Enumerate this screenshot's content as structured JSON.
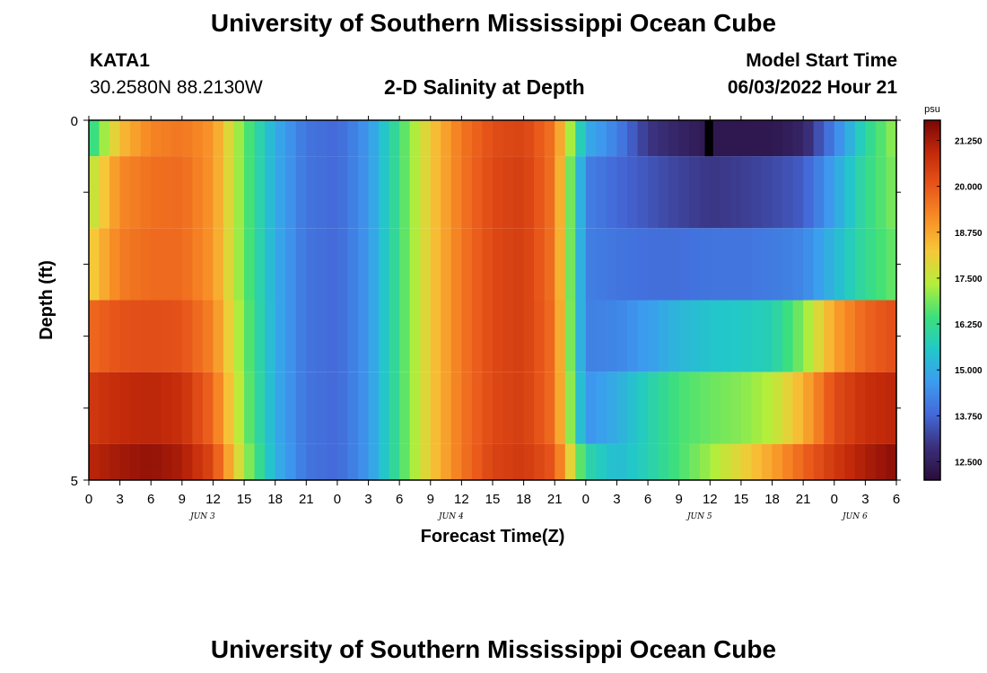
{
  "page": {
    "title": "University of Southern Mississippi Ocean Cube",
    "footer_title": "University of Southern Mississippi Ocean Cube",
    "station": "KATA1",
    "coords": "30.2580N  88.2130W",
    "subtitle": "2-D Salinity at Depth",
    "model_label": "Model Start Time",
    "model_time": "06/03/2022 Hour 21"
  },
  "chart_data": {
    "type": "heatmap",
    "title": "2-D Salinity at Depth",
    "xlabel": "Forecast Time(Z)",
    "ylabel": "Depth (ft)",
    "y_ticks": [
      "0",
      "5"
    ],
    "ylim": [
      0,
      5
    ],
    "x_hours": [
      0,
      3,
      6,
      9,
      12,
      15,
      18,
      21,
      0,
      3,
      6,
      9,
      12,
      15,
      18,
      21,
      0,
      3,
      6,
      9,
      12,
      15,
      18,
      21,
      0,
      3,
      6
    ],
    "day_labels": [
      {
        "label": "JUN 3",
        "hour_index": 11
      },
      {
        "label": "JUN 4",
        "hour_index": 35
      },
      {
        "label": "JUN 5",
        "hour_index": 59
      },
      {
        "label": "JUN 6",
        "hour_index": 74
      }
    ],
    "colorbar": {
      "unit": "psu",
      "min": 12.0,
      "max": 21.8,
      "ticks": [
        "21.250",
        "20.000",
        "18.750",
        "17.500",
        "16.250",
        "15.000",
        "13.750",
        "12.500"
      ],
      "tick_values": [
        21.25,
        20.0,
        18.75,
        17.5,
        16.25,
        15.0,
        13.75,
        12.5
      ],
      "colors": [
        "#2a0d3a",
        "#3a2f7a",
        "#4468d8",
        "#3c9cf0",
        "#22c8c8",
        "#3ee07a",
        "#b4ee3a",
        "#f6c838",
        "#f88e26",
        "#e8561a",
        "#c32a0a",
        "#7a0606"
      ]
    },
    "layers": [
      {
        "depth_range": [
          0.0,
          0.5
        ],
        "hours": [
          0,
          3,
          6,
          9,
          12,
          15,
          18,
          21,
          24,
          27,
          30,
          33,
          36,
          39,
          42,
          45,
          48,
          51,
          54,
          57,
          60,
          63,
          66,
          69,
          72,
          75,
          78
        ],
        "values": [
          16.0,
          18.4,
          19.3,
          19.5,
          19.0,
          16.8,
          15.0,
          14.0,
          13.8,
          14.6,
          16.4,
          18.2,
          19.5,
          20.2,
          20.4,
          19.5,
          15.0,
          14.2,
          13.0,
          12.6,
          12.3,
          12.3,
          12.3,
          12.6,
          14.2,
          16.0,
          17.2
        ]
      },
      {
        "depth_range": [
          0.5,
          1.5
        ],
        "hours": [
          0,
          3,
          6,
          9,
          12,
          15,
          18,
          21,
          24,
          27,
          30,
          33,
          36,
          39,
          42,
          45,
          48,
          51,
          54,
          57,
          60,
          63,
          66,
          69,
          72,
          75,
          78
        ],
        "values": [
          17.3,
          19.2,
          19.6,
          19.7,
          19.0,
          16.8,
          15.0,
          14.0,
          13.8,
          14.6,
          16.4,
          18.2,
          19.5,
          20.3,
          20.5,
          19.5,
          14.2,
          13.8,
          13.5,
          13.2,
          13.0,
          13.1,
          13.3,
          13.6,
          14.8,
          16.2,
          17.0
        ]
      },
      {
        "depth_range": [
          1.5,
          2.5
        ],
        "hours": [
          0,
          3,
          6,
          9,
          12,
          15,
          18,
          21,
          24,
          27,
          30,
          33,
          36,
          39,
          42,
          45,
          48,
          51,
          54,
          57,
          60,
          63,
          66,
          69,
          72,
          75,
          78
        ],
        "values": [
          18.0,
          19.4,
          19.7,
          19.7,
          19.0,
          16.8,
          15.0,
          14.0,
          13.8,
          14.6,
          16.4,
          18.2,
          19.5,
          20.3,
          20.5,
          19.5,
          14.2,
          14.0,
          13.9,
          13.9,
          14.0,
          14.0,
          14.1,
          14.3,
          15.2,
          16.2,
          16.8
        ]
      },
      {
        "depth_range": [
          2.5,
          3.5
        ],
        "hours": [
          0,
          3,
          6,
          9,
          12,
          15,
          18,
          21,
          24,
          27,
          30,
          33,
          36,
          39,
          42,
          45,
          48,
          51,
          54,
          57,
          60,
          63,
          66,
          69,
          72,
          75,
          78
        ],
        "values": [
          19.7,
          20.1,
          20.2,
          20.1,
          19.3,
          16.9,
          15.0,
          14.0,
          13.8,
          14.6,
          16.4,
          18.2,
          19.5,
          20.3,
          20.5,
          19.6,
          14.2,
          14.3,
          14.7,
          15.2,
          15.5,
          15.6,
          15.8,
          17.0,
          18.8,
          19.8,
          20.2
        ]
      },
      {
        "depth_range": [
          3.5,
          4.5
        ],
        "hours": [
          0,
          3,
          6,
          9,
          12,
          15,
          18,
          21,
          24,
          27,
          30,
          33,
          36,
          39,
          42,
          45,
          48,
          51,
          54,
          57,
          60,
          63,
          66,
          69,
          72,
          75,
          78
        ],
        "values": [
          20.6,
          20.9,
          21.0,
          20.8,
          19.7,
          17.0,
          15.0,
          14.0,
          13.8,
          14.6,
          16.4,
          18.2,
          19.5,
          20.3,
          20.5,
          19.6,
          14.5,
          15.0,
          15.8,
          16.5,
          16.8,
          17.0,
          17.4,
          18.6,
          20.2,
          20.8,
          21.0
        ]
      },
      {
        "depth_range": [
          4.5,
          5.0
        ],
        "hours": [
          0,
          3,
          6,
          9,
          12,
          15,
          18,
          21,
          24,
          27,
          30,
          33,
          36,
          39,
          42,
          45,
          48,
          51,
          54,
          57,
          60,
          63,
          66,
          69,
          72,
          75,
          78
        ],
        "values": [
          21.0,
          21.3,
          21.5,
          21.2,
          20.3,
          17.3,
          15.1,
          14.0,
          13.8,
          14.6,
          16.4,
          18.2,
          19.5,
          20.4,
          20.6,
          20.0,
          16.0,
          15.3,
          15.8,
          16.5,
          17.2,
          18.0,
          18.8,
          19.8,
          20.6,
          21.2,
          21.6
        ]
      }
    ],
    "missing_column": {
      "hour": 60,
      "depth_range": [
        0.0,
        0.5
      ]
    }
  }
}
